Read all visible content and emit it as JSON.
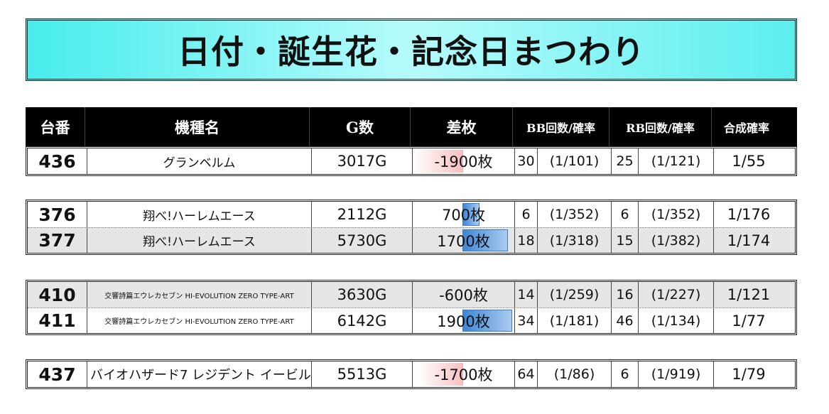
{
  "title": "日付・誕生花・記念日まつわり",
  "headers": {
    "num": "台番",
    "name": "機種名",
    "g": "G数",
    "diff": "差枚",
    "bb": "BB回数/確率",
    "rb": "RB回数/確率",
    "comb": "合成確率"
  },
  "groups": [
    {
      "rows": [
        {
          "num": "436",
          "name": "グランベルム",
          "g": "3017G",
          "diff": "-1900枚",
          "diff_value": -1900,
          "bb_count": "30",
          "bb_prob": "(1/101)",
          "rb_count": "25",
          "rb_prob": "(1/121)",
          "comb": "1/55"
        }
      ]
    },
    {
      "rows": [
        {
          "num": "376",
          "name": "翔べ!ハーレムエース",
          "g": "2112G",
          "diff": "700枚",
          "diff_value": 700,
          "bb_count": "6",
          "bb_prob": "(1/352)",
          "rb_count": "6",
          "rb_prob": "(1/352)",
          "comb": "1/176"
        },
        {
          "num": "377",
          "name": "翔べ!ハーレムエース",
          "g": "5730G",
          "diff": "1700枚",
          "diff_value": 1700,
          "bb_count": "18",
          "bb_prob": "(1/318)",
          "rb_count": "15",
          "rb_prob": "(1/382)",
          "comb": "1/174"
        }
      ]
    },
    {
      "rows": [
        {
          "num": "410",
          "name": "交響詩篇エウレカセブン HI-EVOLUTION ZERO TYPE-ART",
          "g": "3630G",
          "diff": "-600枚",
          "diff_value": -600,
          "bb_count": "14",
          "bb_prob": "(1/259)",
          "rb_count": "16",
          "rb_prob": "(1/227)",
          "comb": "1/121"
        },
        {
          "num": "411",
          "name": "交響詩篇エウレカセブン HI-EVOLUTION ZERO TYPE-ART",
          "g": "6142G",
          "diff": "1900枚",
          "diff_value": 1900,
          "bb_count": "34",
          "bb_prob": "(1/181)",
          "rb_count": "46",
          "rb_prob": "(1/134)",
          "comb": "1/77"
        }
      ]
    },
    {
      "rows": [
        {
          "num": "437",
          "name": "バイオハザード7 レジデント イービル",
          "g": "5513G",
          "diff": "-1700枚",
          "diff_value": -1700,
          "bb_count": "64",
          "bb_prob": "(1/86)",
          "rb_count": "6",
          "rb_prob": "(1/919)",
          "comb": "1/79"
        }
      ]
    }
  ],
  "colors": {
    "title_bg": "#48ecec",
    "header_bg": "#000000",
    "positive_bar": "#3f86d6",
    "negative_bar": "#f7c0c0",
    "shaded_row": "#e6e6e6"
  }
}
